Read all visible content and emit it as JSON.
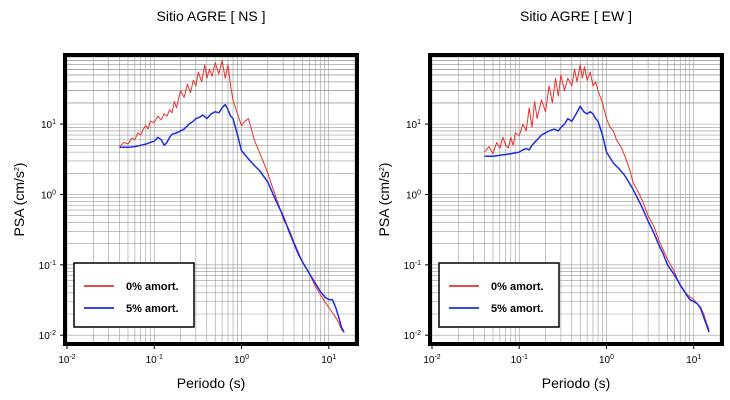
{
  "chart_data": [
    {
      "type": "line",
      "title": "Sitio AGRE [ NS ]",
      "xlabel": "Periodo (s)",
      "ylabel": {
        "base": "PSA (cm/s",
        "sup": "2",
        "tail": ")"
      },
      "xscale": "log",
      "yscale": "log",
      "xlim": [
        0.01,
        20
      ],
      "ylim": [
        0.008,
        90
      ],
      "grid": true,
      "legend_position": "bottom-left",
      "xticks": [
        {
          "value": 0.01,
          "base": "10",
          "exp": "-2"
        },
        {
          "value": 0.1,
          "base": "10",
          "exp": "-1"
        },
        {
          "value": 1,
          "base": "10",
          "exp": "0"
        },
        {
          "value": 10,
          "base": "10",
          "exp": "1"
        }
      ],
      "yticks": [
        {
          "value": 0.01,
          "base": "10",
          "exp": "-2"
        },
        {
          "value": 0.1,
          "base": "10",
          "exp": "-1"
        },
        {
          "value": 1,
          "base": "10",
          "exp": "0"
        },
        {
          "value": 10,
          "base": "10",
          "exp": "1"
        }
      ],
      "series": [
        {
          "name": "0% amort.",
          "color": "#e8312d",
          "x": [
            0.04,
            0.045,
            0.05,
            0.055,
            0.06,
            0.065,
            0.07,
            0.075,
            0.08,
            0.085,
            0.09,
            0.1,
            0.11,
            0.12,
            0.13,
            0.14,
            0.15,
            0.16,
            0.17,
            0.18,
            0.2,
            0.22,
            0.24,
            0.26,
            0.28,
            0.3,
            0.32,
            0.35,
            0.38,
            0.4,
            0.43,
            0.46,
            0.5,
            0.55,
            0.6,
            0.65,
            0.7,
            0.75,
            0.8,
            0.9,
            1.0,
            1.1,
            1.2,
            1.3,
            1.4,
            1.6,
            1.8,
            2.0,
            2.2,
            2.5,
            2.8,
            3.0,
            3.5,
            4.0,
            4.5,
            5.0,
            6.0,
            7.0,
            8.0,
            9.0,
            10.0,
            11.0,
            12.0,
            13.0,
            14.0,
            15.0
          ],
          "y": [
            4.8,
            5.5,
            5.2,
            6.3,
            6.0,
            7.5,
            7.0,
            8.5,
            9.5,
            8.5,
            11.0,
            10.5,
            13.0,
            11.5,
            14.0,
            13.0,
            16.0,
            14.5,
            21.0,
            17.0,
            30.0,
            24.0,
            37.0,
            28.0,
            42.0,
            35.0,
            55.0,
            40.0,
            70.0,
            45.0,
            60.0,
            48.0,
            75.0,
            52.0,
            80.0,
            45.0,
            70.0,
            35.0,
            22.0,
            14.0,
            9.5,
            11.0,
            12.0,
            8.5,
            6.0,
            4.0,
            2.8,
            2.0,
            1.4,
            0.9,
            0.6,
            0.45,
            0.32,
            0.21,
            0.15,
            0.11,
            0.075,
            0.05,
            0.038,
            0.03,
            0.025,
            0.021,
            0.018,
            0.015,
            0.012,
            0.011
          ]
        },
        {
          "name": "5% amort.",
          "color": "#1d2ce3",
          "x": [
            0.04,
            0.05,
            0.06,
            0.07,
            0.08,
            0.09,
            0.1,
            0.11,
            0.12,
            0.13,
            0.14,
            0.15,
            0.16,
            0.18,
            0.2,
            0.22,
            0.25,
            0.28,
            0.3,
            0.33,
            0.36,
            0.4,
            0.45,
            0.5,
            0.55,
            0.6,
            0.65,
            0.7,
            0.75,
            0.8,
            0.9,
            1.0,
            1.2,
            1.4,
            1.6,
            1.8,
            2.0,
            2.5,
            3.0,
            3.5,
            4.0,
            4.5,
            5.0,
            6.0,
            7.0,
            8.0,
            9.0,
            10.0,
            11.0,
            12.0,
            13.0,
            14.0,
            15.0
          ],
          "y": [
            4.7,
            4.7,
            4.8,
            5.0,
            5.2,
            5.5,
            5.7,
            6.5,
            6.0,
            5.0,
            5.5,
            6.5,
            7.2,
            7.5,
            8.0,
            8.5,
            10.0,
            11.0,
            12.0,
            12.5,
            13.5,
            12.0,
            14.0,
            15.0,
            14.5,
            17.0,
            19.0,
            16.0,
            13.0,
            12.0,
            7.0,
            4.2,
            3.2,
            2.6,
            2.2,
            1.8,
            1.5,
            0.8,
            0.5,
            0.3,
            0.2,
            0.14,
            0.11,
            0.075,
            0.055,
            0.042,
            0.035,
            0.032,
            0.032,
            0.025,
            0.018,
            0.013,
            0.011
          ]
        }
      ]
    },
    {
      "type": "line",
      "title": "Sitio AGRE [ EW ]",
      "xlabel": "Periodo (s)",
      "ylabel": {
        "base": "PSA (cm/s",
        "sup": "2",
        "tail": ")"
      },
      "xscale": "log",
      "yscale": "log",
      "xlim": [
        0.01,
        20
      ],
      "ylim": [
        0.008,
        90
      ],
      "grid": true,
      "legend_position": "bottom-left",
      "xticks": [
        {
          "value": 0.01,
          "base": "10",
          "exp": "-2"
        },
        {
          "value": 0.1,
          "base": "10",
          "exp": "-1"
        },
        {
          "value": 1,
          "base": "10",
          "exp": "0"
        },
        {
          "value": 10,
          "base": "10",
          "exp": "1"
        }
      ],
      "yticks": [
        {
          "value": 0.01,
          "base": "10",
          "exp": "-2"
        },
        {
          "value": 0.1,
          "base": "10",
          "exp": "-1"
        },
        {
          "value": 1,
          "base": "10",
          "exp": "0"
        },
        {
          "value": 10,
          "base": "10",
          "exp": "1"
        }
      ],
      "series": [
        {
          "name": "0% amort.",
          "color": "#e8312d",
          "x": [
            0.04,
            0.045,
            0.05,
            0.055,
            0.06,
            0.065,
            0.07,
            0.075,
            0.08,
            0.085,
            0.09,
            0.1,
            0.11,
            0.12,
            0.13,
            0.14,
            0.15,
            0.16,
            0.18,
            0.2,
            0.22,
            0.24,
            0.26,
            0.28,
            0.3,
            0.33,
            0.36,
            0.4,
            0.43,
            0.46,
            0.5,
            0.53,
            0.56,
            0.6,
            0.65,
            0.7,
            0.75,
            0.8,
            0.9,
            1.0,
            1.1,
            1.2,
            1.3,
            1.5,
            1.7,
            1.9,
            2.0,
            2.3,
            2.6,
            3.0,
            3.5,
            4.0,
            4.5,
            5.0,
            6.0,
            7.0,
            8.0,
            9.0,
            10.0,
            11.0,
            12.0,
            13.0,
            14.0,
            15.0
          ],
          "y": [
            4.0,
            4.8,
            3.8,
            5.5,
            4.5,
            6.5,
            5.0,
            4.6,
            6.5,
            5.0,
            7.5,
            6.8,
            10.0,
            8.0,
            17.0,
            9.0,
            21.0,
            12.0,
            22.0,
            15.0,
            35.0,
            20.0,
            45.0,
            25.0,
            50.0,
            30.0,
            45.0,
            35.0,
            60.0,
            40.0,
            70.0,
            45.0,
            65.0,
            42.0,
            55.0,
            35.0,
            40.0,
            30.0,
            20.0,
            12.0,
            9.0,
            8.0,
            6.0,
            4.5,
            3.0,
            2.0,
            1.5,
            1.1,
            0.8,
            0.5,
            0.35,
            0.22,
            0.16,
            0.12,
            0.08,
            0.05,
            0.04,
            0.035,
            0.032,
            0.028,
            0.025,
            0.02,
            0.015,
            0.012
          ]
        },
        {
          "name": "5% amort.",
          "color": "#1d2ce3",
          "x": [
            0.04,
            0.05,
            0.06,
            0.07,
            0.08,
            0.09,
            0.1,
            0.11,
            0.12,
            0.13,
            0.14,
            0.15,
            0.16,
            0.18,
            0.2,
            0.22,
            0.25,
            0.28,
            0.3,
            0.33,
            0.36,
            0.4,
            0.45,
            0.5,
            0.55,
            0.6,
            0.65,
            0.7,
            0.75,
            0.8,
            0.9,
            1.0,
            1.2,
            1.4,
            1.6,
            1.8,
            2.0,
            2.5,
            3.0,
            3.5,
            4.0,
            4.5,
            5.0,
            6.0,
            7.0,
            8.0,
            9.0,
            10.0,
            11.0,
            12.0,
            13.0,
            14.0,
            15.0
          ],
          "y": [
            3.5,
            3.5,
            3.6,
            3.7,
            3.8,
            3.9,
            4.0,
            4.3,
            4.5,
            4.3,
            5.0,
            5.5,
            6.0,
            7.0,
            7.5,
            8.0,
            8.5,
            8.0,
            9.0,
            10.0,
            12.0,
            11.0,
            14.0,
            18.0,
            15.0,
            14.0,
            15.0,
            14.0,
            12.0,
            11.0,
            7.0,
            4.0,
            2.8,
            2.3,
            1.9,
            1.5,
            1.2,
            0.7,
            0.42,
            0.28,
            0.19,
            0.14,
            0.1,
            0.072,
            0.052,
            0.04,
            0.032,
            0.03,
            0.028,
            0.024,
            0.018,
            0.014,
            0.011
          ]
        }
      ]
    }
  ]
}
